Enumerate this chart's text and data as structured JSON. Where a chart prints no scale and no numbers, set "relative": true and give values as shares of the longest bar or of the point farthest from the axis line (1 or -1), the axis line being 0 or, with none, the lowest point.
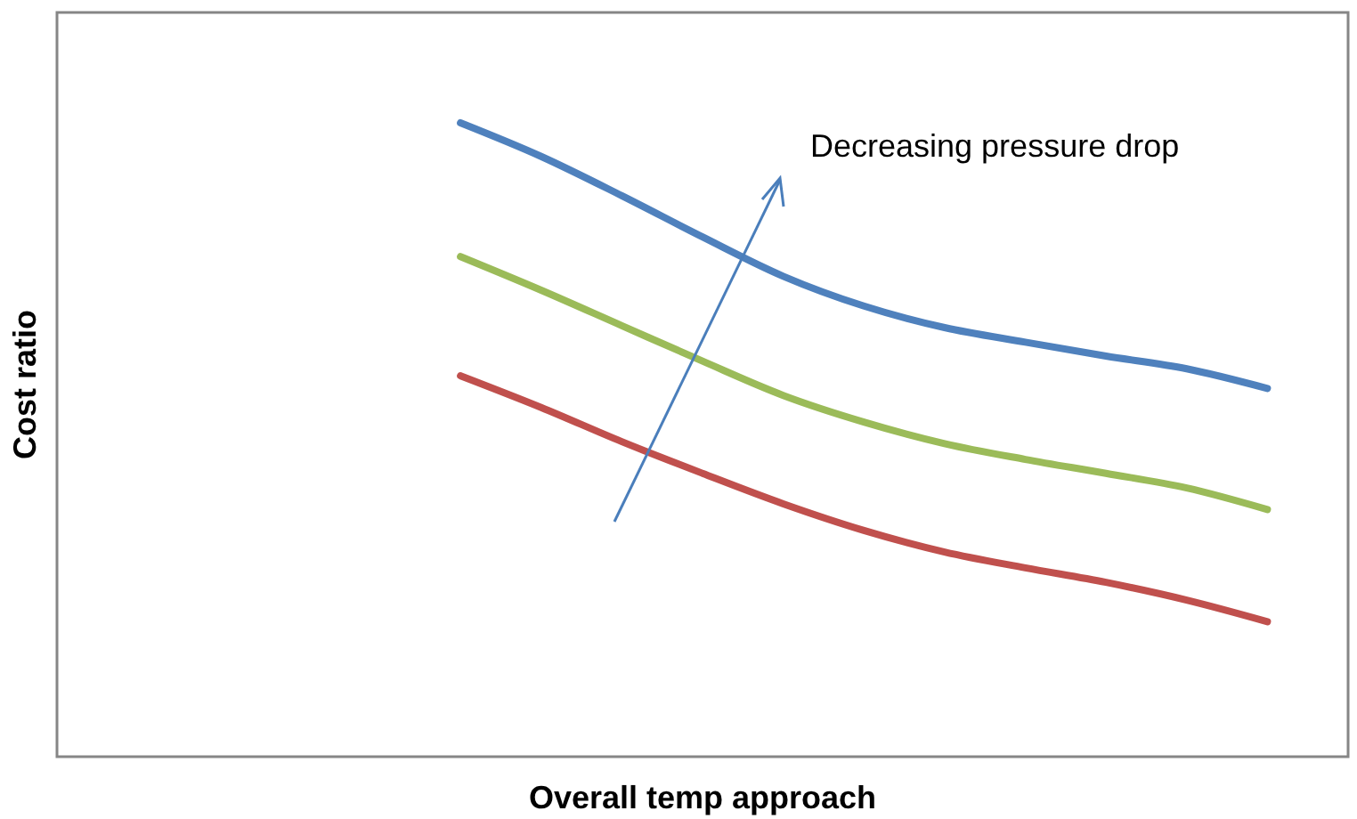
{
  "chart_data": {
    "type": "line",
    "relative": true,
    "xlabel": "Overall temp approach",
    "ylabel": "Cost ratio",
    "annotations": [
      "Decreasing pressure drop"
    ],
    "categories": [
      null,
      null,
      null,
      null,
      null,
      null,
      null,
      null,
      null,
      null,
      null,
      null,
      null,
      null,
      null,
      null,
      null
    ],
    "series": [
      {
        "color": "#4f81bd",
        "values": [
          null,
          null,
          null,
          null,
          null,
          1,
          0.947,
          0.885,
          0.82,
          0.758,
          0.711,
          0.677,
          0.654,
          0.632,
          0.612,
          0.581,
          null
        ]
      },
      {
        "color": "#9bbb59",
        "values": [
          null,
          null,
          null,
          null,
          null,
          0.789,
          0.736,
          0.68,
          0.624,
          0.57,
          0.528,
          0.494,
          0.469,
          0.447,
          0.424,
          0.39,
          null
        ]
      },
      {
        "color": "#c0504d",
        "values": [
          null,
          null,
          null,
          null,
          null,
          0.601,
          0.551,
          0.497,
          0.447,
          0.399,
          0.357,
          0.323,
          0.298,
          0.275,
          0.247,
          0.213,
          null
        ]
      }
    ]
  }
}
